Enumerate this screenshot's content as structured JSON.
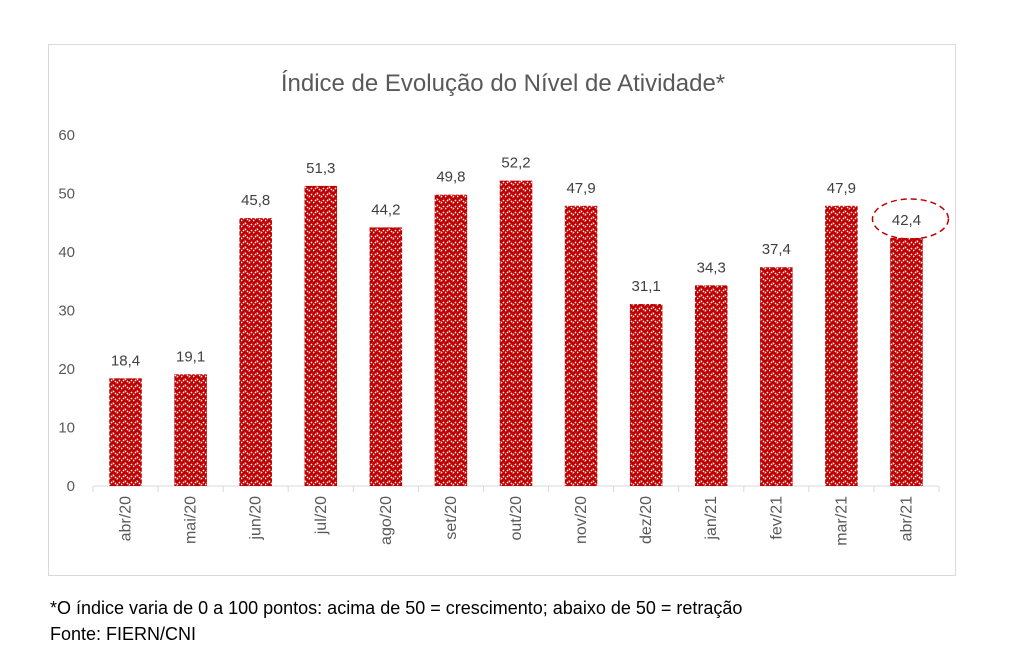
{
  "chart_data": {
    "type": "bar",
    "title": "Índice de Evolução do Nível de Atividade*",
    "categories": [
      "abr/20",
      "mai/20",
      "jun/20",
      "jul/20",
      "ago/20",
      "set/20",
      "out/20",
      "nov/20",
      "dez/20",
      "jan/21",
      "fev/21",
      "mar/21",
      "abr/21"
    ],
    "values": [
      18.4,
      19.1,
      45.8,
      51.3,
      44.2,
      49.8,
      52.2,
      47.9,
      31.1,
      34.3,
      37.4,
      47.9,
      42.4
    ],
    "data_labels": [
      "18,4",
      "19,1",
      "45,8",
      "51,3",
      "44,2",
      "49,8",
      "52,2",
      "47,9",
      "31,1",
      "34,3",
      "37,4",
      "47,9",
      "42,4"
    ],
    "ylim": [
      0,
      60
    ],
    "yticks": [
      "0",
      "10",
      "20",
      "30",
      "40",
      "50",
      "60"
    ],
    "xlabel": "",
    "ylabel": "",
    "grid": false,
    "highlight_category": "abr/21",
    "bar_color": "#c00000",
    "highlight_color": "#c00000"
  },
  "notes": {
    "footnote": "*O índice varia de 0 a 100 pontos: acima de 50 = crescimento; abaixo de 50 = retração",
    "source": "Fonte: FIERN/CNI"
  }
}
